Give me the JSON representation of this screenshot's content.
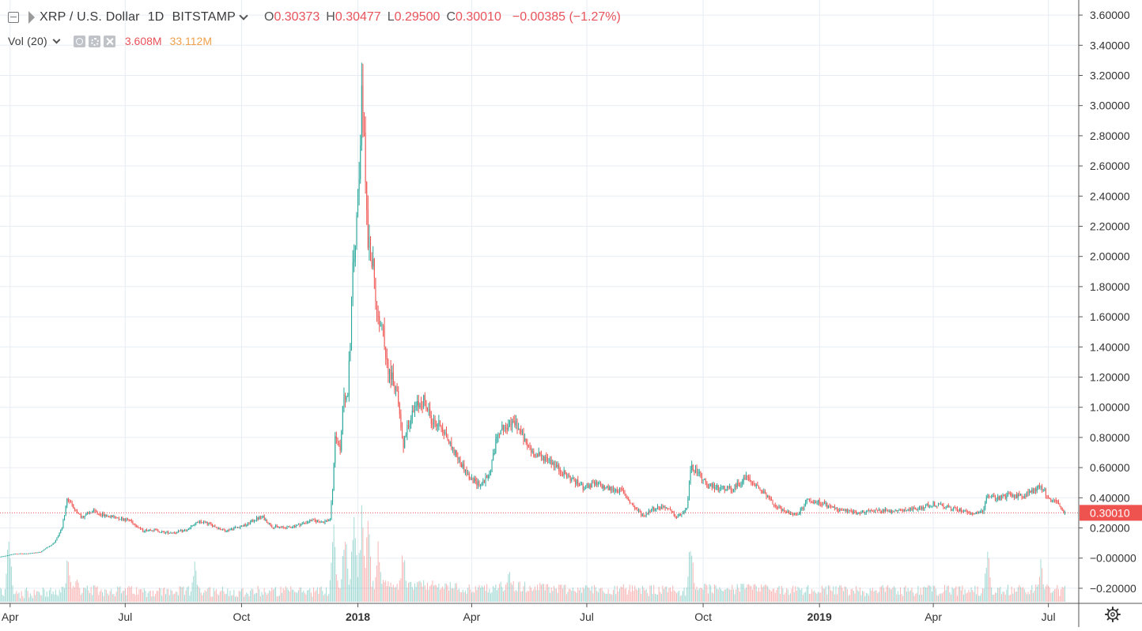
{
  "legend": {
    "symbol": "XRP / U.S. Dollar",
    "interval": "1D",
    "exchange": "BITSTAMP",
    "o_label": "O",
    "o_value": "0.30373",
    "h_label": "H",
    "h_value": "0.30477",
    "l_label": "L",
    "l_value": "0.29500",
    "c_label": "C",
    "c_value": "0.30010",
    "change": "−0.00385 (−1.27%)",
    "vol_label": "Vol (20)",
    "vol_value": "3.608M",
    "vol_ma_value": "33.112M"
  },
  "colors": {
    "up": "#26a69a",
    "down": "#ef5350",
    "grid": "#e7edf3",
    "price_badge": "#ef5350",
    "price_line": "#ef5350"
  },
  "chart_data": {
    "type": "candlestick",
    "title": "XRP / U.S. Dollar",
    "y_axis": {
      "ticks": [
        3.6,
        3.4,
        3.2,
        3.0,
        2.8,
        2.6,
        2.4,
        2.2,
        2.0,
        1.8,
        1.6,
        1.4,
        1.2,
        1.0,
        0.8,
        0.6,
        0.4,
        0.2,
        0.0,
        -0.2
      ],
      "tick_labels": [
        "3.60000",
        "3.40000",
        "3.20000",
        "3.00000",
        "2.80000",
        "2.60000",
        "2.40000",
        "2.20000",
        "2.00000",
        "1.80000",
        "1.60000",
        "1.40000",
        "1.20000",
        "1.00000",
        "0.80000",
        "0.60000",
        "0.40000",
        "0.20000",
        "−0.00000",
        "−0.20000"
      ],
      "range": [
        -0.3,
        3.7
      ],
      "side": "right"
    },
    "x_axis": {
      "ticks": [
        {
          "date": "2017-04-01",
          "label": "Apr",
          "bold": false
        },
        {
          "date": "2017-07-01",
          "label": "Jul",
          "bold": false
        },
        {
          "date": "2017-10-01",
          "label": "Oct",
          "bold": false
        },
        {
          "date": "2018-01-01",
          "label": "2018",
          "bold": true
        },
        {
          "date": "2018-04-01",
          "label": "Apr",
          "bold": false
        },
        {
          "date": "2018-07-01",
          "label": "Jul",
          "bold": false
        },
        {
          "date": "2018-10-01",
          "label": "Oct",
          "bold": false
        },
        {
          "date": "2019-01-01",
          "label": "2019",
          "bold": true
        },
        {
          "date": "2019-04-01",
          "label": "Apr",
          "bold": false
        },
        {
          "date": "2019-07-01",
          "label": "Jul",
          "bold": false
        }
      ],
      "range": [
        "2017-03-24",
        "2019-07-25"
      ]
    },
    "last_price": 0.3001,
    "last_price_label": "0.30010",
    "grid": true,
    "close_series": [
      [
        "2017-03-24",
        0.009
      ],
      [
        "2017-03-31",
        0.02
      ],
      [
        "2017-04-05",
        0.03
      ],
      [
        "2017-04-15",
        0.03
      ],
      [
        "2017-04-25",
        0.04
      ],
      [
        "2017-04-30",
        0.07
      ],
      [
        "2017-05-06",
        0.1
      ],
      [
        "2017-05-12",
        0.2
      ],
      [
        "2017-05-16",
        0.38
      ],
      [
        "2017-05-21",
        0.34
      ],
      [
        "2017-05-27",
        0.27
      ],
      [
        "2017-06-05",
        0.31
      ],
      [
        "2017-06-15",
        0.28
      ],
      [
        "2017-06-25",
        0.27
      ],
      [
        "2017-07-05",
        0.25
      ],
      [
        "2017-07-15",
        0.18
      ],
      [
        "2017-07-22",
        0.19
      ],
      [
        "2017-08-01",
        0.17
      ],
      [
        "2017-08-10",
        0.17
      ],
      [
        "2017-08-20",
        0.19
      ],
      [
        "2017-08-25",
        0.23
      ],
      [
        "2017-09-01",
        0.24
      ],
      [
        "2017-09-10",
        0.21
      ],
      [
        "2017-09-18",
        0.18
      ],
      [
        "2017-09-25",
        0.2
      ],
      [
        "2017-10-05",
        0.22
      ],
      [
        "2017-10-12",
        0.26
      ],
      [
        "2017-10-18",
        0.27
      ],
      [
        "2017-10-25",
        0.21
      ],
      [
        "2017-11-05",
        0.2
      ],
      [
        "2017-11-15",
        0.22
      ],
      [
        "2017-11-25",
        0.25
      ],
      [
        "2017-12-05",
        0.24
      ],
      [
        "2017-12-10",
        0.26
      ],
      [
        "2017-12-12",
        0.45
      ],
      [
        "2017-12-14",
        0.82
      ],
      [
        "2017-12-18",
        0.72
      ],
      [
        "2017-12-21",
        1.1
      ],
      [
        "2017-12-24",
        1.05
      ],
      [
        "2017-12-28",
        1.9
      ],
      [
        "2017-12-31",
        2.2
      ],
      [
        "2018-01-02",
        2.6
      ],
      [
        "2018-01-04",
        3.1
      ],
      [
        "2018-01-06",
        2.75
      ],
      [
        "2018-01-09",
        2.1
      ],
      [
        "2018-01-13",
        1.95
      ],
      [
        "2018-01-16",
        1.55
      ],
      [
        "2018-01-20",
        1.55
      ],
      [
        "2018-01-25",
        1.25
      ],
      [
        "2018-02-01",
        1.1
      ],
      [
        "2018-02-06",
        0.75
      ],
      [
        "2018-02-10",
        0.9
      ],
      [
        "2018-02-16",
        1.0
      ],
      [
        "2018-02-22",
        1.05
      ],
      [
        "2018-03-01",
        0.9
      ],
      [
        "2018-03-08",
        0.88
      ],
      [
        "2018-03-15",
        0.75
      ],
      [
        "2018-03-22",
        0.65
      ],
      [
        "2018-03-31",
        0.52
      ],
      [
        "2018-04-08",
        0.49
      ],
      [
        "2018-04-15",
        0.55
      ],
      [
        "2018-04-22",
        0.85
      ],
      [
        "2018-05-01",
        0.88
      ],
      [
        "2018-05-06",
        0.9
      ],
      [
        "2018-05-14",
        0.75
      ],
      [
        "2018-05-22",
        0.68
      ],
      [
        "2018-06-01",
        0.66
      ],
      [
        "2018-06-10",
        0.58
      ],
      [
        "2018-06-18",
        0.53
      ],
      [
        "2018-06-28",
        0.47
      ],
      [
        "2018-07-08",
        0.49
      ],
      [
        "2018-07-18",
        0.46
      ],
      [
        "2018-07-28",
        0.45
      ],
      [
        "2018-08-08",
        0.33
      ],
      [
        "2018-08-15",
        0.28
      ],
      [
        "2018-08-22",
        0.33
      ],
      [
        "2018-09-01",
        0.34
      ],
      [
        "2018-09-10",
        0.27
      ],
      [
        "2018-09-18",
        0.32
      ],
      [
        "2018-09-21",
        0.6
      ],
      [
        "2018-09-25",
        0.58
      ],
      [
        "2018-10-05",
        0.48
      ],
      [
        "2018-10-15",
        0.46
      ],
      [
        "2018-10-25",
        0.46
      ],
      [
        "2018-11-05",
        0.54
      ],
      [
        "2018-11-15",
        0.46
      ],
      [
        "2018-11-25",
        0.36
      ],
      [
        "2018-12-05",
        0.3
      ],
      [
        "2018-12-15",
        0.29
      ],
      [
        "2018-12-22",
        0.38
      ],
      [
        "2019-01-01",
        0.37
      ],
      [
        "2019-01-15",
        0.32
      ],
      [
        "2019-02-01",
        0.3
      ],
      [
        "2019-02-15",
        0.32
      ],
      [
        "2019-03-01",
        0.31
      ],
      [
        "2019-03-15",
        0.32
      ],
      [
        "2019-04-01",
        0.36
      ],
      [
        "2019-04-15",
        0.33
      ],
      [
        "2019-05-01",
        0.3
      ],
      [
        "2019-05-10",
        0.31
      ],
      [
        "2019-05-14",
        0.42
      ],
      [
        "2019-05-20",
        0.39
      ],
      [
        "2019-06-01",
        0.42
      ],
      [
        "2019-06-10",
        0.41
      ],
      [
        "2019-06-20",
        0.45
      ],
      [
        "2019-06-25",
        0.48
      ],
      [
        "2019-07-01",
        0.4
      ],
      [
        "2019-07-08",
        0.36
      ],
      [
        "2019-07-14",
        0.3001
      ]
    ],
    "volume_spikes": [
      [
        "2017-03-31",
        95
      ],
      [
        "2017-05-17",
        70
      ],
      [
        "2017-05-24",
        38
      ],
      [
        "2017-08-25",
        58
      ],
      [
        "2017-12-13",
        110
      ],
      [
        "2017-12-22",
        120
      ],
      [
        "2017-12-29",
        150
      ],
      [
        "2018-01-04",
        145
      ],
      [
        "2018-01-09",
        125
      ],
      [
        "2018-01-17",
        100
      ],
      [
        "2018-02-06",
        80
      ],
      [
        "2018-05-01",
        50
      ],
      [
        "2018-09-21",
        100
      ],
      [
        "2018-11-20",
        35
      ],
      [
        "2019-05-14",
        75
      ],
      [
        "2019-06-25",
        65
      ]
    ]
  }
}
